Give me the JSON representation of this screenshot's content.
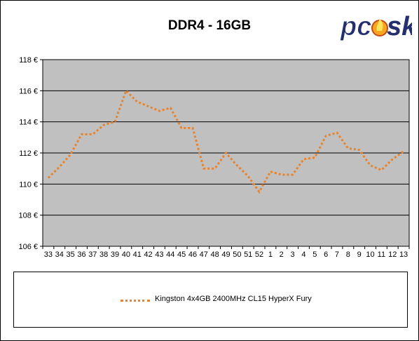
{
  "chart_data": {
    "type": "line",
    "title": "DDR4 - 16GB",
    "xlabel": "",
    "ylabel": "",
    "ylim": [
      106,
      118
    ],
    "y_ticks": [
      "106 €",
      "108 €",
      "110 €",
      "112 €",
      "114 €",
      "116 €",
      "118 €"
    ],
    "y_tick_values": [
      106,
      108,
      110,
      112,
      114,
      116,
      118
    ],
    "grid": true,
    "legend_position": "bottom",
    "categories": [
      "33",
      "34",
      "35",
      "36",
      "37",
      "38",
      "39",
      "40",
      "41",
      "42",
      "43",
      "44",
      "45",
      "46",
      "47",
      "48",
      "49",
      "50",
      "51",
      "52",
      "1",
      "2",
      "3",
      "4",
      "5",
      "6",
      "7",
      "8",
      "9",
      "10",
      "11",
      "12",
      "13"
    ],
    "series": [
      {
        "name": "Kingston 4x4GB 2400MHz CL15 HyperX Fury",
        "color": "#e8832b",
        "values": [
          110.4,
          111.1,
          111.9,
          113.2,
          113.2,
          113.8,
          114.0,
          116.0,
          115.3,
          115.0,
          114.7,
          114.9,
          113.6,
          113.6,
          111.0,
          111.0,
          112.0,
          111.2,
          110.5,
          109.5,
          110.8,
          110.6,
          110.6,
          111.6,
          111.7,
          113.1,
          113.3,
          112.3,
          112.2,
          111.2,
          110.9,
          111.6,
          112.1
        ]
      }
    ]
  },
  "colors": {
    "plot_background": "#c0c0c0",
    "gridline": "#000000",
    "series": "#e8832b"
  },
  "logo": {
    "text": "pcosk"
  }
}
